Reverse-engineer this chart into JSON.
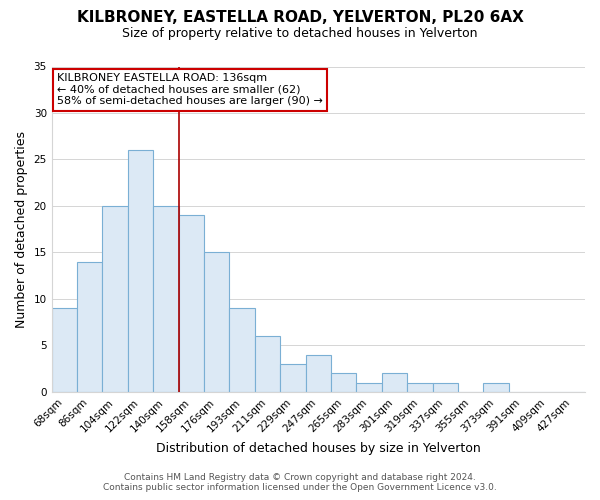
{
  "title": "KILBRONEY, EASTELLA ROAD, YELVERTON, PL20 6AX",
  "subtitle": "Size of property relative to detached houses in Yelverton",
  "xlabel": "Distribution of detached houses by size in Yelverton",
  "ylabel": "Number of detached properties",
  "bar_labels": [
    "68sqm",
    "86sqm",
    "104sqm",
    "122sqm",
    "140sqm",
    "158sqm",
    "176sqm",
    "193sqm",
    "211sqm",
    "229sqm",
    "247sqm",
    "265sqm",
    "283sqm",
    "301sqm",
    "319sqm",
    "337sqm",
    "355sqm",
    "373sqm",
    "391sqm",
    "409sqm",
    "427sqm"
  ],
  "bar_values": [
    9,
    14,
    20,
    26,
    20,
    19,
    15,
    9,
    6,
    3,
    4,
    2,
    1,
    2,
    1,
    1,
    0,
    1,
    0,
    0,
    0
  ],
  "bar_fill_color": "#dce9f5",
  "bar_edge_color": "#7aafd4",
  "vline_color": "#aa0000",
  "vline_position": 4,
  "ylim": [
    0,
    35
  ],
  "yticks": [
    0,
    5,
    10,
    15,
    20,
    25,
    30,
    35
  ],
  "annotation_title": "KILBRONEY EASTELLA ROAD: 136sqm",
  "annotation_line1": "← 40% of detached houses are smaller (62)",
  "annotation_line2": "58% of semi-detached houses are larger (90) →",
  "annotation_box_color": "#ffffff",
  "annotation_box_edge": "#cc0000",
  "footer1": "Contains HM Land Registry data © Crown copyright and database right 2024.",
  "footer2": "Contains public sector information licensed under the Open Government Licence v3.0.",
  "title_fontsize": 11,
  "subtitle_fontsize": 9,
  "annotation_fontsize": 8,
  "axis_label_fontsize": 9,
  "tick_fontsize": 7.5,
  "footer_fontsize": 6.5,
  "background_color": "#ffffff",
  "grid_color": "#d5d5d5"
}
